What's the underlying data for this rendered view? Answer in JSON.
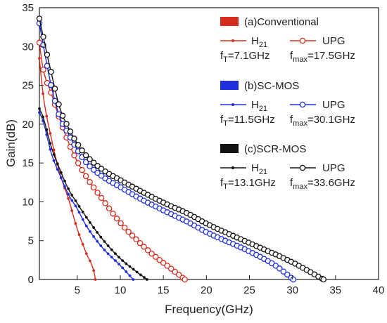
{
  "chart_data": {
    "type": "line",
    "xlabel": "Frequency(GHz)",
    "ylabel": "Gain(dB)",
    "xlim": [
      0.6,
      40
    ],
    "ylim": [
      0,
      35
    ],
    "x_ticks": [
      5,
      10,
      15,
      20,
      25,
      30,
      35,
      40
    ],
    "y_ticks": [
      0,
      5,
      10,
      15,
      20,
      25,
      30,
      35
    ],
    "grid": false,
    "legend_position": "top-right",
    "groups": [
      {
        "title": "(a)Conventional",
        "color": "#d62c1e",
        "h21_label": "H21",
        "upg_label": "UPG",
        "ft_text": "fT=7.1GHz",
        "fmax_text": "fmax=17.5GHz"
      },
      {
        "title": "(b)SC-MOS",
        "color": "#1f2fe0",
        "h21_label": "H21",
        "upg_label": "UPG",
        "ft_text": "fT=11.5GHz",
        "fmax_text": "fmax=30.1GHz"
      },
      {
        "title": "(c)SCR-MOS",
        "color": "#111111",
        "h21_label": "H21",
        "upg_label": "UPG",
        "ft_text": "fT=13.1GHz",
        "fmax_text": "fmax=33.6GHz"
      }
    ],
    "series": [
      {
        "name": "(a)Conventional H21",
        "marker": "dot",
        "color": "#d62c1e",
        "points": [
          [
            0.6,
            28.5
          ],
          [
            1,
            24.1
          ],
          [
            2,
            18.1
          ],
          [
            3,
            13.6
          ],
          [
            4,
            10.3
          ],
          [
            5,
            6.5
          ],
          [
            6,
            3.5
          ],
          [
            7,
            0.7
          ],
          [
            7.1,
            0
          ]
        ]
      },
      {
        "name": "(a)Conventional UPG",
        "marker": "circle",
        "color": "#d62c1e",
        "points": [
          [
            0.6,
            30.5
          ],
          [
            1,
            27.3
          ],
          [
            2,
            23.9
          ],
          [
            3,
            20.5
          ],
          [
            4,
            17.6
          ],
          [
            5,
            15.2
          ],
          [
            6,
            13.3
          ],
          [
            8,
            10.2
          ],
          [
            10,
            7.3
          ],
          [
            12,
            5.0
          ],
          [
            14,
            3.0
          ],
          [
            16,
            1.3
          ],
          [
            17.5,
            0
          ]
        ]
      },
      {
        "name": "(b)SC-MOS H21",
        "marker": "dot",
        "color": "#1f2fe0",
        "points": [
          [
            0.6,
            21.5
          ],
          [
            1,
            20.5
          ],
          [
            2,
            16.2
          ],
          [
            3,
            13.4
          ],
          [
            4,
            10.9
          ],
          [
            5,
            9.1
          ],
          [
            6,
            7.0
          ],
          [
            8,
            4.0
          ],
          [
            10,
            1.8
          ],
          [
            11.5,
            0
          ]
        ]
      },
      {
        "name": "(b)SC-MOS UPG",
        "marker": "circle",
        "color": "#1f2fe0",
        "points": [
          [
            0.6,
            33.0
          ],
          [
            1,
            30.5
          ],
          [
            2,
            24.8
          ],
          [
            3,
            20.8
          ],
          [
            4,
            18.7
          ],
          [
            5,
            16.7
          ],
          [
            6,
            15.1
          ],
          [
            8,
            13.2
          ],
          [
            10,
            11.9
          ],
          [
            12,
            10.6
          ],
          [
            15,
            8.9
          ],
          [
            18,
            7.3
          ],
          [
            20,
            6.1
          ],
          [
            25,
            3.6
          ],
          [
            28,
            1.8
          ],
          [
            30.1,
            0
          ]
        ]
      },
      {
        "name": "(c)SCR-MOS H21",
        "marker": "dot",
        "color": "#111111",
        "points": [
          [
            0.6,
            22.0
          ],
          [
            1,
            21.0
          ],
          [
            2,
            17.0
          ],
          [
            3,
            14.1
          ],
          [
            4,
            11.6
          ],
          [
            5,
            9.8
          ],
          [
            6,
            8.1
          ],
          [
            8,
            5.1
          ],
          [
            10,
            2.7
          ],
          [
            12,
            0.9
          ],
          [
            13.1,
            0
          ]
        ]
      },
      {
        "name": "(c)SCR-MOS UPG",
        "marker": "circle",
        "color": "#111111",
        "points": [
          [
            0.6,
            33.6
          ],
          [
            1,
            31.5
          ],
          [
            2,
            26.5
          ],
          [
            3,
            22.0
          ],
          [
            4,
            19.5
          ],
          [
            5,
            17.5
          ],
          [
            6,
            16.0
          ],
          [
            8,
            14.1
          ],
          [
            10,
            12.8
          ],
          [
            12,
            11.6
          ],
          [
            15,
            9.9
          ],
          [
            18,
            8.4
          ],
          [
            20,
            7.2
          ],
          [
            25,
            4.7
          ],
          [
            30,
            2.2
          ],
          [
            33.6,
            0
          ]
        ]
      }
    ]
  }
}
